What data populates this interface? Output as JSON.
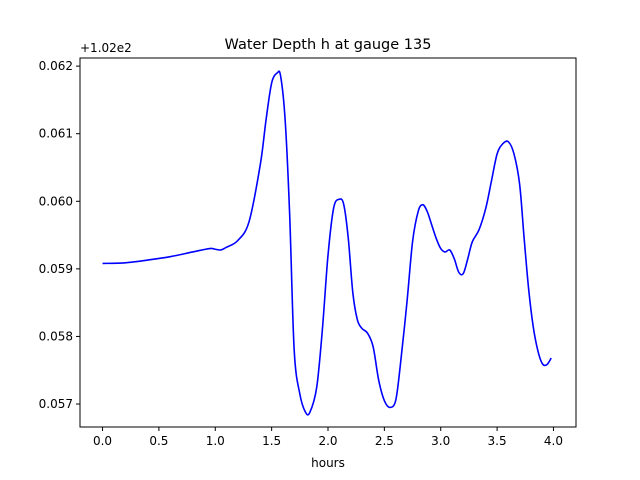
{
  "chart_data": {
    "type": "line",
    "title": "Water Depth h at gauge 135",
    "xlabel": "hours",
    "ylabel": "",
    "y_offset_label": "+1.02e2",
    "xlim": [
      -0.2,
      4.2
    ],
    "ylim": [
      0.05666,
      0.06212
    ],
    "x_ticks": [
      0.0,
      0.5,
      1.0,
      1.5,
      2.0,
      2.5,
      3.0,
      3.5,
      4.0
    ],
    "x_tick_labels": [
      "0.0",
      "0.5",
      "1.0",
      "1.5",
      "2.0",
      "2.5",
      "3.0",
      "3.5",
      "4.0"
    ],
    "y_ticks": [
      0.057,
      0.058,
      0.059,
      0.06,
      0.061,
      0.062
    ],
    "y_tick_labels": [
      "0.057",
      "0.058",
      "0.059",
      "0.060",
      "0.061",
      "0.062"
    ],
    "grid": false,
    "legend": "none",
    "series": [
      {
        "color": "#0000ff",
        "x": [
          0.0,
          0.2,
          0.4,
          0.6,
          0.8,
          0.95,
          1.0,
          1.05,
          1.1,
          1.2,
          1.3,
          1.4,
          1.45,
          1.5,
          1.55,
          1.58,
          1.62,
          1.66,
          1.7,
          1.75,
          1.8,
          1.84,
          1.9,
          1.95,
          2.0,
          2.05,
          2.1,
          2.14,
          2.18,
          2.22,
          2.26,
          2.3,
          2.35,
          2.4,
          2.45,
          2.5,
          2.55,
          2.6,
          2.64,
          2.7,
          2.75,
          2.8,
          2.84,
          2.88,
          2.92,
          2.96,
          3.0,
          3.04,
          3.08,
          3.12,
          3.16,
          3.2,
          3.24,
          3.28,
          3.34,
          3.4,
          3.45,
          3.5,
          3.55,
          3.6,
          3.65,
          3.7,
          3.74,
          3.78,
          3.82,
          3.86,
          3.9,
          3.94,
          3.98
        ],
        "values": [
          0.05908,
          0.05909,
          0.05913,
          0.05918,
          0.05925,
          0.0593,
          0.05929,
          0.05928,
          0.05932,
          0.05942,
          0.0597,
          0.06055,
          0.0612,
          0.06175,
          0.0619,
          0.06185,
          0.0612,
          0.0598,
          0.0578,
          0.05715,
          0.05688,
          0.05688,
          0.05725,
          0.0581,
          0.0592,
          0.0599,
          0.06003,
          0.05995,
          0.05945,
          0.05865,
          0.05825,
          0.05812,
          0.05805,
          0.05785,
          0.05735,
          0.05705,
          0.05695,
          0.05705,
          0.05755,
          0.0585,
          0.0594,
          0.05985,
          0.05995,
          0.05985,
          0.05965,
          0.05945,
          0.0593,
          0.05925,
          0.05928,
          0.05915,
          0.05895,
          0.05893,
          0.05915,
          0.0594,
          0.05958,
          0.0599,
          0.0603,
          0.0607,
          0.06085,
          0.06088,
          0.0607,
          0.06025,
          0.05945,
          0.0587,
          0.05815,
          0.0578,
          0.0576,
          0.05758,
          0.05768
        ]
      }
    ]
  }
}
